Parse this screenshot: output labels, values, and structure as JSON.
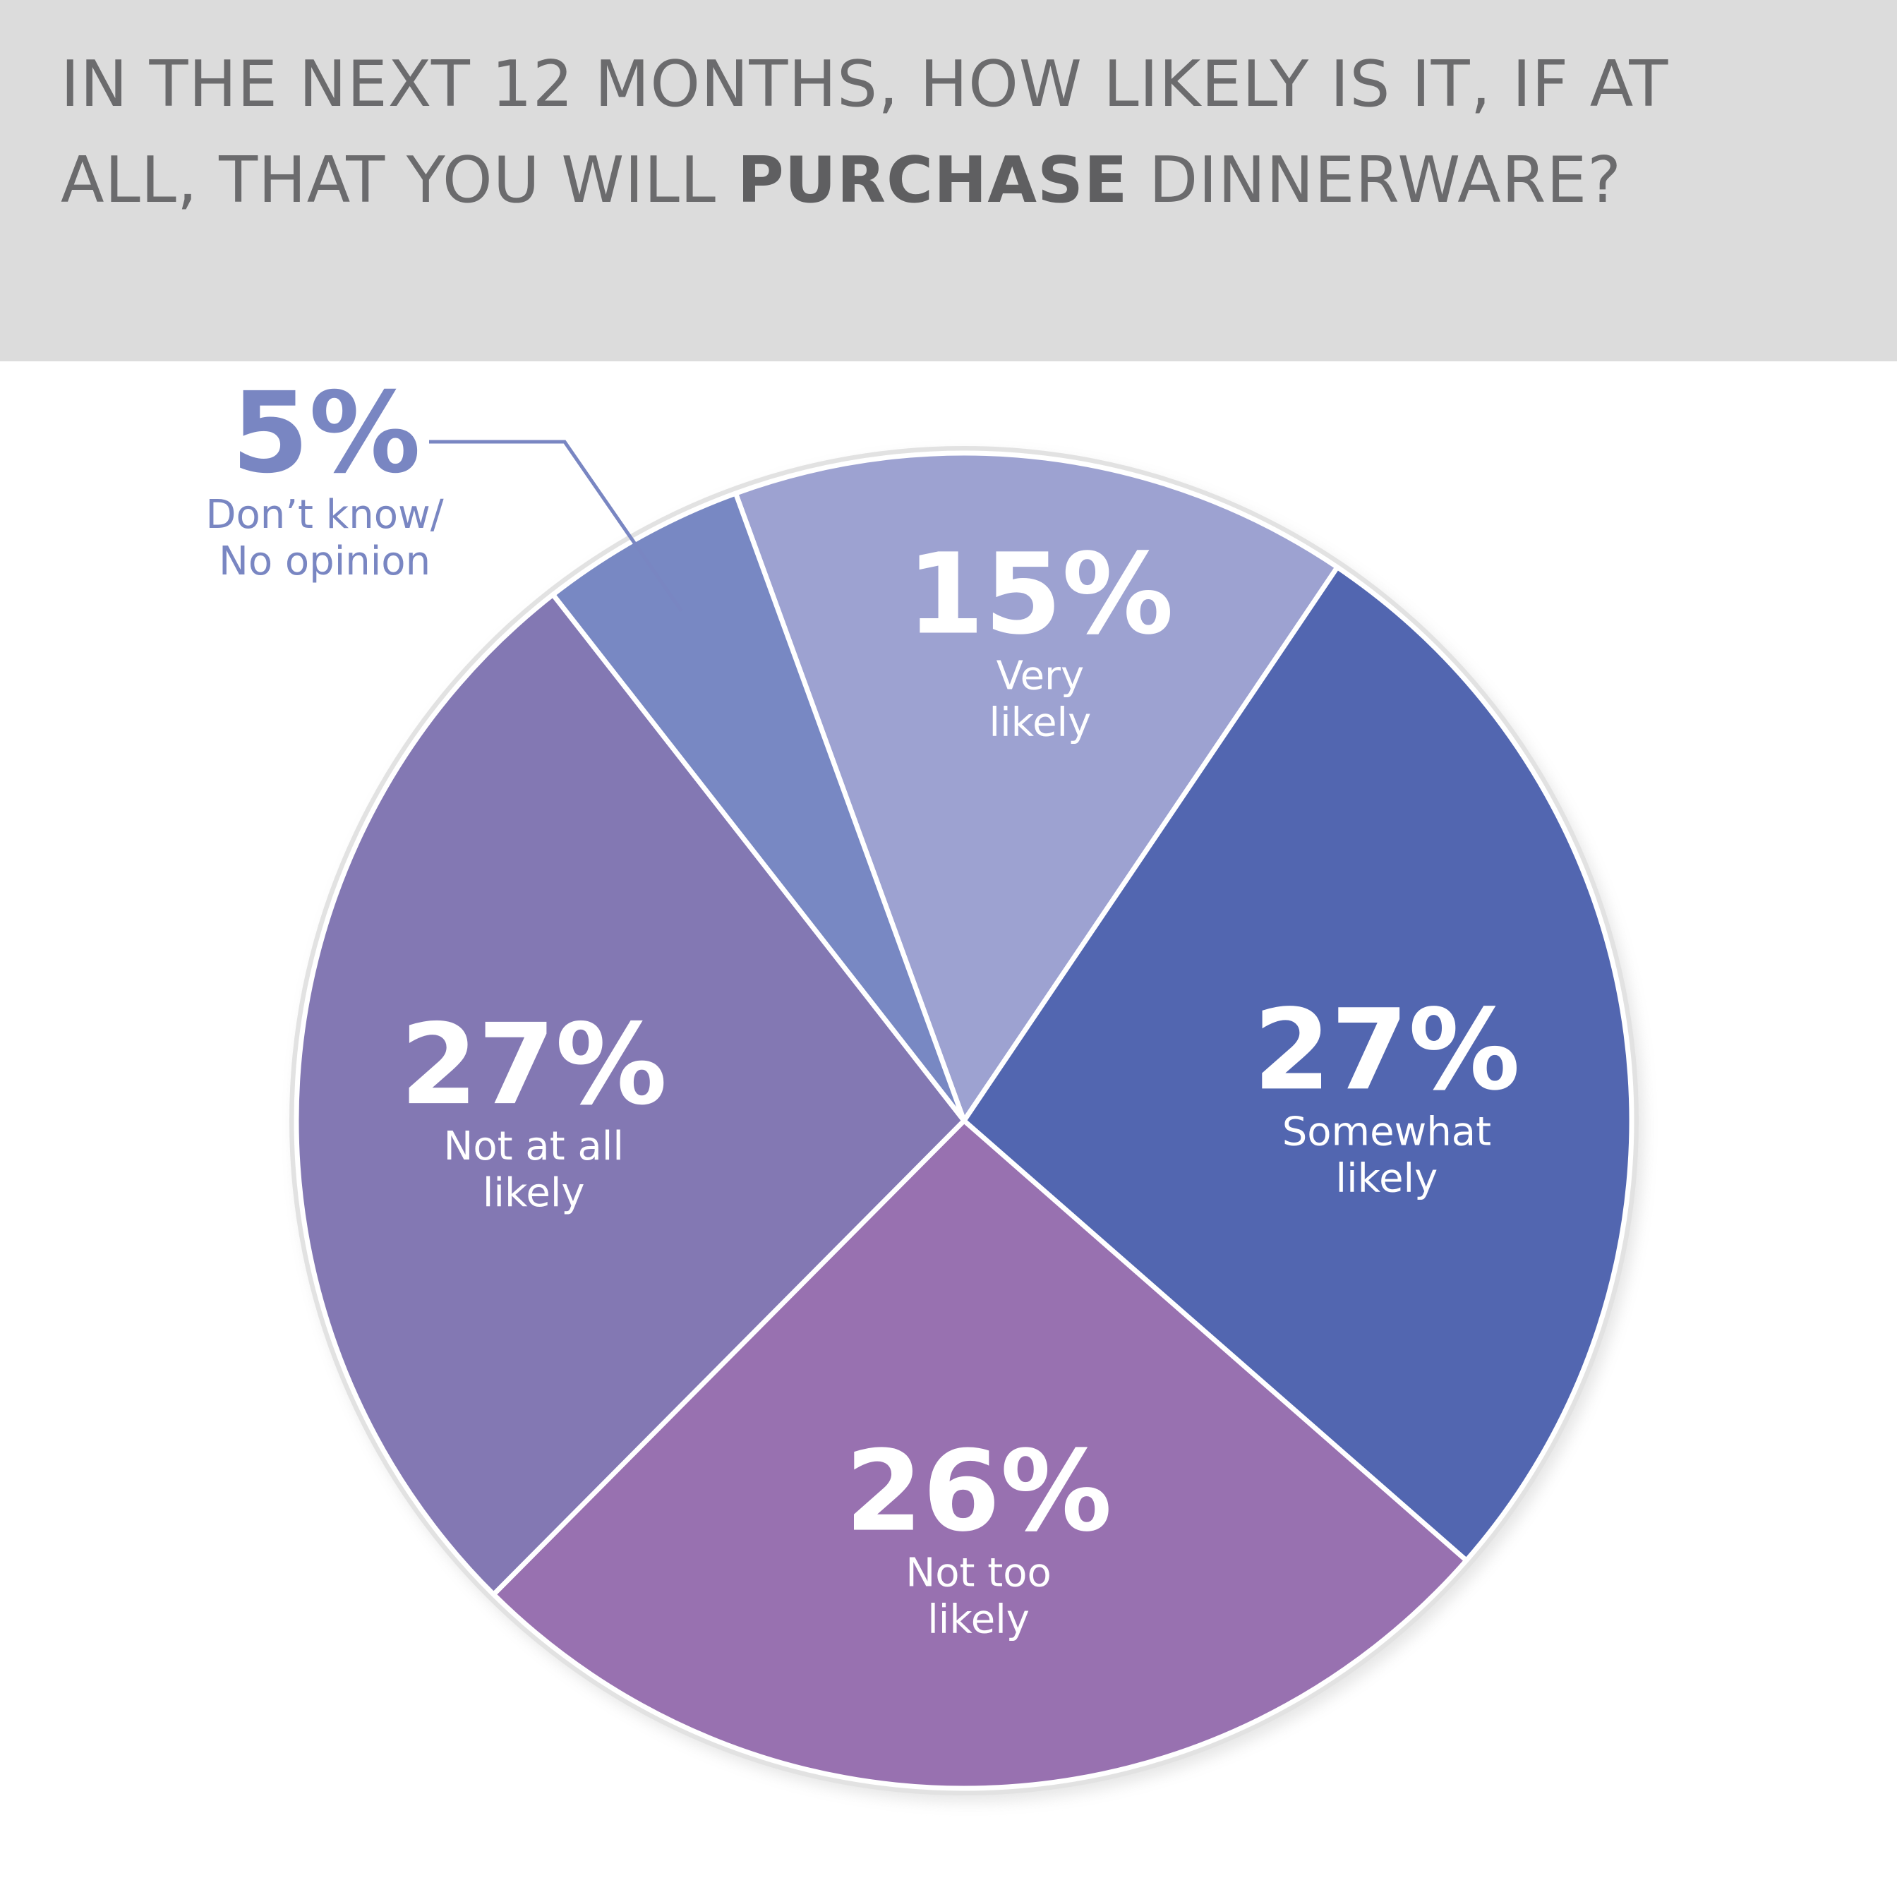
{
  "title": {
    "part1": "IN THE NEXT 12 MONTHS, HOW LIKELY IS IT, IF AT",
    "part2": "ALL, THAT YOU WILL ",
    "emphasis": "PURCHASE",
    "part3": " DINNERWARE?"
  },
  "colors": {
    "header_bg": "#dcdcdc",
    "title_text": "#6b6b6d",
    "slice_border": "#ffffff",
    "outer_ring": "#e2e2e2",
    "callout": "#7986c2"
  },
  "chart_data": {
    "type": "pie",
    "start_angle_deg": -20,
    "direction": "clockwise",
    "slices": [
      {
        "label": "Very likely",
        "value": 15,
        "value_label": "15%",
        "label_lines": [
          "Very",
          "likely"
        ],
        "color": "#9da2d1"
      },
      {
        "label": "Somewhat likely",
        "value": 27,
        "value_label": "27%",
        "label_lines": [
          "Somewhat",
          "likely"
        ],
        "color": "#5266b0"
      },
      {
        "label": "Not too likely",
        "value": 26,
        "value_label": "26%",
        "label_lines": [
          "Not too",
          "likely"
        ],
        "color": "#9871b0"
      },
      {
        "label": "Not at all likely",
        "value": 27,
        "value_label": "27%",
        "label_lines": [
          "Not at all",
          "likely"
        ],
        "color": "#8378b3"
      },
      {
        "label": "Don’t know/ No opinion",
        "value": 5,
        "value_label": "5%",
        "label_lines": [
          "Don’t know/",
          "No opinion"
        ],
        "color": "#7888c3",
        "callout": true
      }
    ]
  }
}
